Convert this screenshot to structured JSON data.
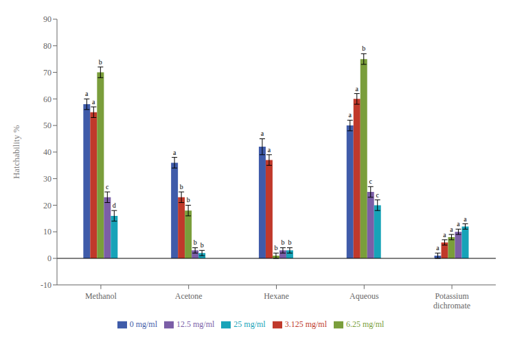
{
  "chart_data": {
    "type": "bar",
    "categories": [
      "Methanol",
      "Acetone",
      "Hexane",
      "Aqueous",
      "Potassium\ndichromate"
    ],
    "series": [
      {
        "name": "0 mg/ml",
        "color": "#3f5ba9",
        "values": [
          58,
          36,
          42,
          50,
          1
        ],
        "errors": [
          2,
          2,
          3,
          2,
          1
        ],
        "letters": [
          "a",
          "a",
          "a",
          "a",
          "a"
        ]
      },
      {
        "name": "3.125 mg/ml",
        "color": "#c0392b",
        "values": [
          55,
          23,
          37,
          60,
          6
        ],
        "errors": [
          2,
          2,
          2,
          2,
          1
        ],
        "letters": [
          "a",
          "b",
          "a",
          "a",
          "a"
        ]
      },
      {
        "name": "6.25 mg/ml",
        "color": "#7a9e3b",
        "values": [
          70,
          18,
          1,
          75,
          8
        ],
        "errors": [
          2,
          2,
          1,
          2,
          1
        ],
        "letters": [
          "b",
          "b",
          "b",
          "b",
          "a"
        ]
      },
      {
        "name": "12.5 mg/ml",
        "color": "#7b5ea7",
        "values": [
          23,
          3,
          3,
          25,
          10
        ],
        "errors": [
          2,
          1,
          1,
          2,
          1
        ],
        "letters": [
          "c",
          "b",
          "b",
          "c",
          "a"
        ]
      },
      {
        "name": "25 mg/ml",
        "color": "#17a3b8",
        "values": [
          16,
          2,
          3,
          20,
          12
        ],
        "errors": [
          2,
          1,
          1,
          2,
          1
        ],
        "letters": [
          "d",
          "b",
          "b",
          "c",
          "a"
        ]
      }
    ],
    "ylabel": "Hatchability %",
    "ylim": [
      -10,
      90
    ],
    "yticks": [
      -10,
      0,
      10,
      20,
      30,
      40,
      50,
      60,
      70,
      80,
      90
    ],
    "grid": false,
    "legend": "bottom"
  }
}
